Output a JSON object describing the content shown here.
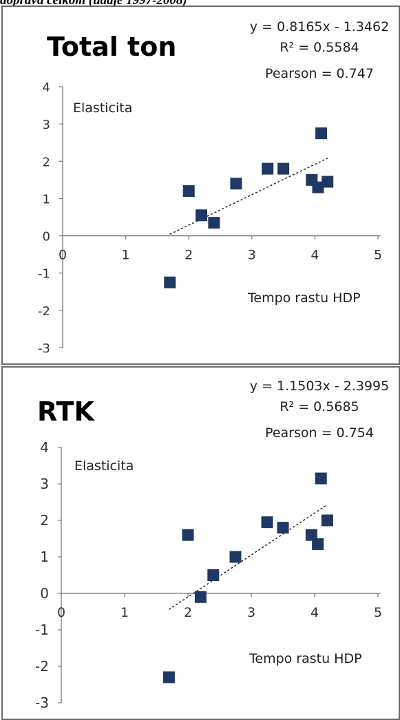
{
  "caption": "doprava celkom (údaje 1997-2008)",
  "chart_data": [
    {
      "type": "scatter",
      "title": "Total ton",
      "equation": "y = 0.8165x - 1.3462",
      "r2": "R² = 0.5584",
      "pearson": "Pearson =  0.747",
      "ylabel": "Elasticita",
      "xlabel": "Tempo rastu HDP",
      "xlim": [
        0,
        5
      ],
      "ylim": [
        -3,
        4
      ],
      "xticks": [
        "0",
        "1",
        "2",
        "3",
        "4",
        "5"
      ],
      "yticks": [
        "4",
        "3",
        "2",
        "1",
        "0",
        "-1",
        "-2",
        "-3"
      ],
      "trendline": {
        "slope": 0.8165,
        "intercept": -1.3462,
        "x_range": [
          1.7,
          4.2
        ]
      },
      "marker_color": "#1f3864",
      "points": [
        {
          "x": 1.7,
          "y": -1.25
        },
        {
          "x": 2.0,
          "y": 1.2
        },
        {
          "x": 2.2,
          "y": 0.55
        },
        {
          "x": 2.4,
          "y": 0.35
        },
        {
          "x": 2.75,
          "y": 1.4
        },
        {
          "x": 3.25,
          "y": 1.8
        },
        {
          "x": 3.5,
          "y": 1.8
        },
        {
          "x": 3.95,
          "y": 1.5
        },
        {
          "x": 4.05,
          "y": 1.3
        },
        {
          "x": 4.1,
          "y": 2.75
        },
        {
          "x": 4.2,
          "y": 1.45
        }
      ]
    },
    {
      "type": "scatter",
      "title": "RTK",
      "equation": "y = 1.1503x - 2.3995",
      "r2": "R² = 0.5685",
      "pearson": "Pearson =  0.754",
      "ylabel": "Elasticita",
      "xlabel": "Tempo rastu HDP",
      "xlim": [
        0,
        5
      ],
      "ylim": [
        -3,
        4
      ],
      "xticks": [
        "0",
        "1",
        "2",
        "3",
        "4",
        "5"
      ],
      "yticks": [
        "4",
        "3",
        "2",
        "1",
        "0",
        "-1",
        "-2",
        "-3"
      ],
      "trendline": {
        "slope": 1.1503,
        "intercept": -2.3995,
        "x_range": [
          1.7,
          4.2
        ]
      },
      "marker_color": "#1f3864",
      "points": [
        {
          "x": 1.7,
          "y": -2.3
        },
        {
          "x": 2.0,
          "y": 1.6
        },
        {
          "x": 2.2,
          "y": -0.1
        },
        {
          "x": 2.4,
          "y": 0.5
        },
        {
          "x": 2.75,
          "y": 1.0
        },
        {
          "x": 3.25,
          "y": 1.95
        },
        {
          "x": 3.5,
          "y": 1.8
        },
        {
          "x": 3.95,
          "y": 1.6
        },
        {
          "x": 4.05,
          "y": 1.35
        },
        {
          "x": 4.1,
          "y": 3.15
        },
        {
          "x": 4.2,
          "y": 2.0
        }
      ]
    }
  ]
}
